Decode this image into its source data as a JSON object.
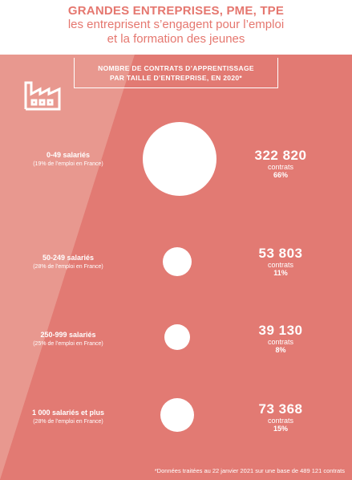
{
  "header": {
    "line1": "GRANDES ENTREPRISES, PME, TPE",
    "line2": "les entreprisent s’engagent pour l’emploi",
    "line3": "et la formation des jeunes"
  },
  "badge": {
    "line1": "NOMBRE DE CONTRATS D’APPRENTISSAGE",
    "line2": "PAR TAILLE D’ENTREPRISE, EN 2020*"
  },
  "rows": [
    {
      "size": "0-49 salariés",
      "share": "(19% de l’emploi en France)",
      "count": "322 820",
      "unit": "contrats",
      "percent": "66%",
      "percent_value": 66
    },
    {
      "size": "50-249 salariés",
      "share": "(28% de l’emploi en France)",
      "count": "53 803",
      "unit": "contrats",
      "percent": "11%",
      "percent_value": 11
    },
    {
      "size": "250-999 salariés",
      "share": "(25% de l’emploi en France)",
      "count": "39 130",
      "unit": "contrats",
      "percent": "8%",
      "percent_value": 8
    },
    {
      "size": "1 000 salariés et plus",
      "share": "(28% de l’emploi en France)",
      "count": "73 368",
      "unit": "contrats",
      "percent": "15%",
      "percent_value": 15
    }
  ],
  "footnote": "*Données traitées au 22 janvier 2021 sur une base de 489 121 contrats",
  "colors": {
    "accent": "#e5776f",
    "panel": "#e27a73",
    "panel_light": "#e8988f",
    "text_on_panel": "#ffffff"
  },
  "icons": {
    "factory": "factory-icon"
  }
}
